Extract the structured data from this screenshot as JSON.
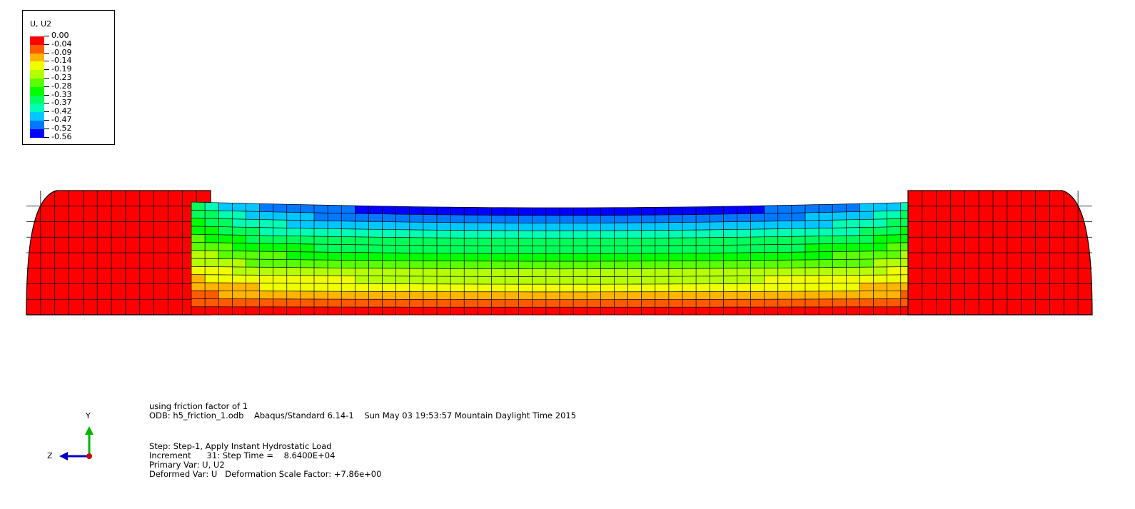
{
  "legend": {
    "title": "U, U2",
    "labels": [
      "0.00",
      "-0.04",
      "-0.09",
      "-0.14",
      "-0.19",
      "-0.23",
      "-0.28",
      "-0.33",
      "-0.37",
      "-0.42",
      "-0.47",
      "-0.52",
      "-0.56"
    ],
    "colors": [
      "#ff0000",
      "#ff5a00",
      "#ffb400",
      "#f0ff00",
      "#b4ff00",
      "#5aff00",
      "#00ff00",
      "#00ff5a",
      "#00ffb4",
      "#00c8ff",
      "#0078ff",
      "#0000ff"
    ]
  },
  "model": {
    "end_block_color": "#ff0000",
    "mesh_color": "#000000"
  },
  "info": {
    "title_line": "using friction factor of 1",
    "odb_line": "ODB: h5_friction_1.odb    Abaqus/Standard 6.14-1    Sun May 03 19:53:57 Mountain Daylight Time 2015",
    "step_line": "Step: Step-1, Apply Instant Hydrostatic Load",
    "increment_line": "Increment      31: Step Time =    8.6400E+04",
    "primary_var_line": "Primary Var: U, U2",
    "deformed_var_line": "Deformed Var: U   Deformation Scale Factor: +7.86e+00"
  },
  "triad": {
    "y_label": "Y",
    "z_label": "Z",
    "y_color": "#00b400",
    "z_color": "#0000c8",
    "origin_color": "#c80000"
  }
}
